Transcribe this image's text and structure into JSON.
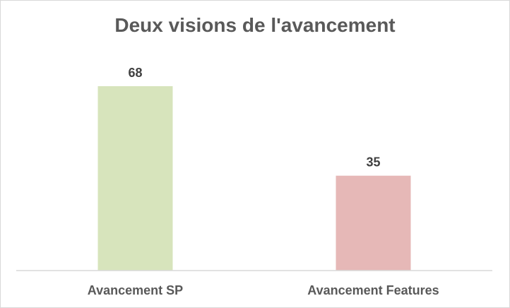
{
  "chart_data": {
    "type": "bar",
    "title": "Deux visions de l'avancement",
    "categories": [
      "Avancement SP",
      "Avancement Features"
    ],
    "values": [
      68,
      35
    ],
    "colors": [
      "#d7e4bc",
      "#e6b8b7"
    ],
    "ylim": [
      0,
      68
    ],
    "xlabel": "",
    "ylabel": "",
    "grid": false,
    "legend": "none",
    "data_labels": true
  }
}
